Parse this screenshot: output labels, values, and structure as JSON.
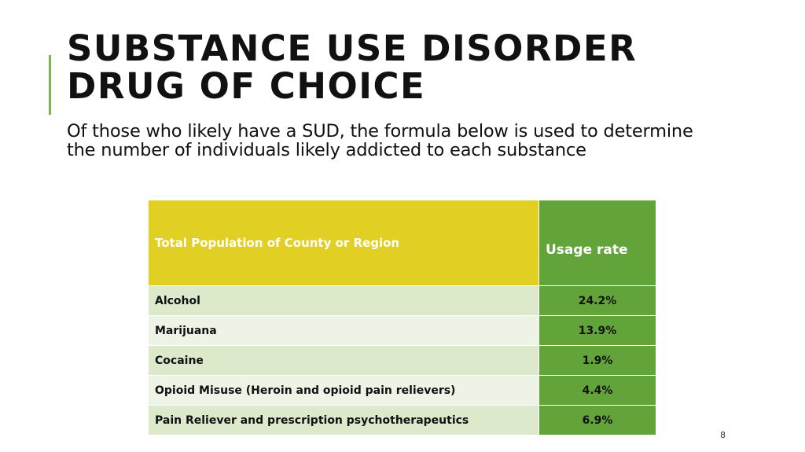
{
  "slide": {
    "title_line1": "SUBSTANCE USE DISORDER",
    "title_line2": "DRUG OF CHOICE",
    "subtitle": "Of those who likely have a SUD, the formula below is used to determine the number of individuals likely addicted to each substance",
    "page_number": "8"
  },
  "table": {
    "header_left": "Total Population of County or Region",
    "header_right": "Usage rate",
    "rows": [
      {
        "substance": "Alcohol",
        "rate": "24.2%"
      },
      {
        "substance": "Marijuana",
        "rate": "13.9%"
      },
      {
        "substance": "Cocaine",
        "rate": "1.9%"
      },
      {
        "substance": "Opioid Misuse (Heroin and opioid pain relievers)",
        "rate": "4.4%"
      },
      {
        "substance": "Pain Reliever and prescription psychotherapeutics",
        "rate": "6.9%"
      }
    ]
  },
  "colors": {
    "accent": "#7ab648",
    "header_yellow": "#e2cf23",
    "header_green": "#62a33a",
    "row_light_1": "#dce9cb",
    "row_light_2": "#edf4e6"
  }
}
